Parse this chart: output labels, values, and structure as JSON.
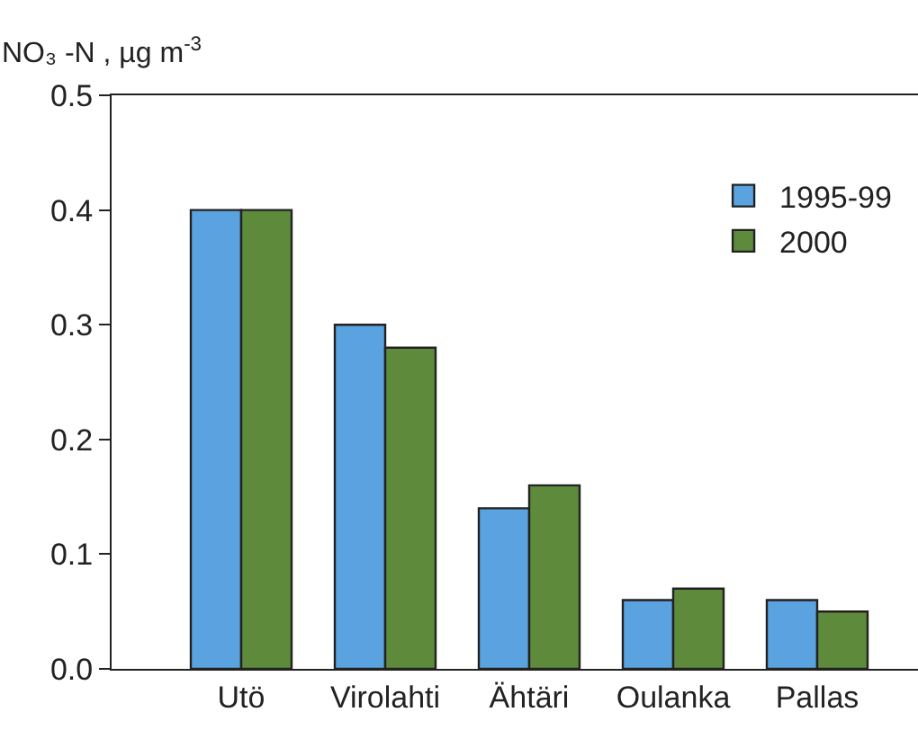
{
  "chart_data": {
    "type": "bar",
    "ylabel": "NO₃ -N , µg m$^{-3}$",
    "categories": [
      "Utö",
      "Virolahti",
      "Ähtäri",
      "Oulanka",
      "Pallas"
    ],
    "series": [
      {
        "name": "1995-99",
        "color": "#5ba3e0",
        "values": [
          0.4,
          0.3,
          0.14,
          0.06,
          0.06
        ]
      },
      {
        "name": "2000",
        "color": "#5e8a3c",
        "values": [
          0.4,
          0.28,
          0.16,
          0.07,
          0.05
        ]
      }
    ],
    "ylim": [
      0,
      0.5
    ],
    "yticks": [
      {
        "value": 0,
        "label": "0.0"
      },
      0.1,
      0.2,
      0.3,
      0.4,
      0.5
    ],
    "grid": false,
    "legend": "top right"
  }
}
